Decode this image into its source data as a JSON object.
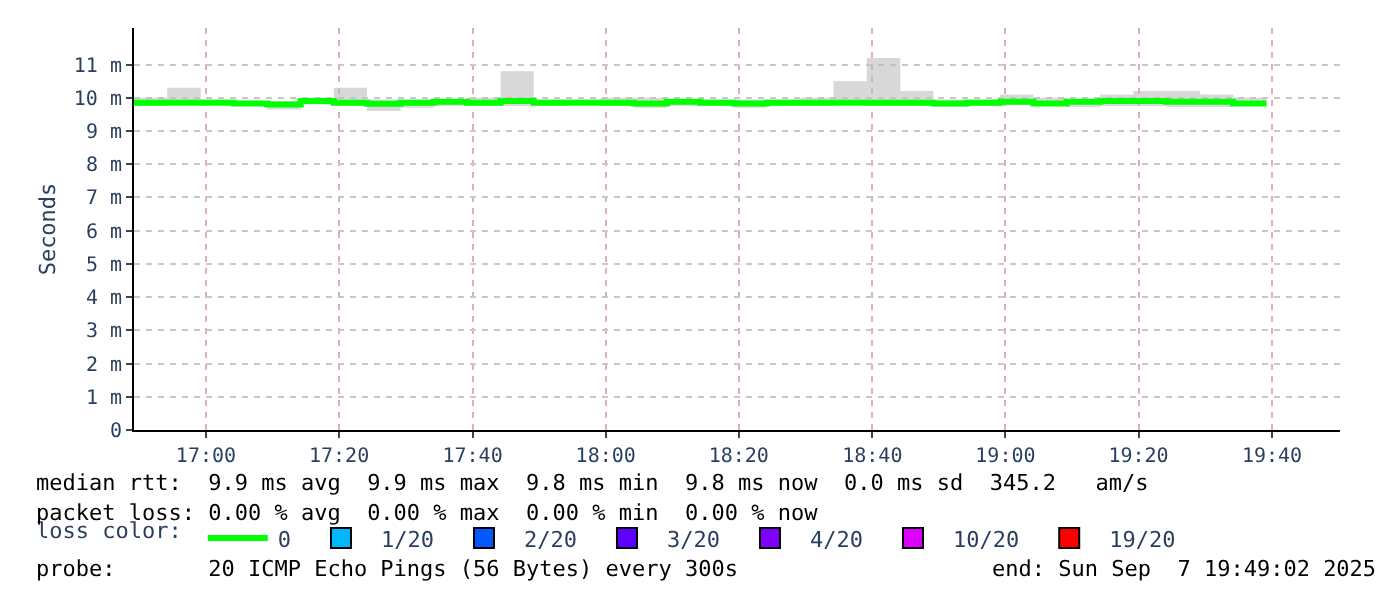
{
  "chart_data": {
    "type": "step",
    "ylabel": "Seconds",
    "legend_title": "loss color:",
    "x": [
      16.82,
      16.903,
      16.987,
      17.07,
      17.153,
      17.237,
      17.32,
      17.403,
      17.487,
      17.57,
      17.653,
      17.737,
      17.82,
      17.903,
      17.987,
      18.07,
      18.153,
      18.237,
      18.32,
      18.403,
      18.487,
      18.57,
      18.653,
      18.737,
      18.82,
      18.903,
      18.987,
      19.07,
      19.153,
      19.237,
      19.32,
      19.403,
      19.487,
      19.57,
      19.653
    ],
    "series": [
      {
        "name": "0",
        "color": "#00ff00",
        "values": [
          9.85,
          9.85,
          9.85,
          9.83,
          9.8,
          9.9,
          9.85,
          9.82,
          9.85,
          9.88,
          9.85,
          9.9,
          9.85,
          9.85,
          9.85,
          9.83,
          9.88,
          9.85,
          9.83,
          9.85,
          9.85,
          9.85,
          9.85,
          9.85,
          9.83,
          9.85,
          9.88,
          9.83,
          9.88,
          9.9,
          9.9,
          9.88,
          9.88,
          9.83,
          9.83
        ],
        "lower": [
          9.75,
          9.8,
          9.78,
          9.78,
          9.65,
          9.8,
          9.75,
          9.6,
          9.7,
          9.75,
          9.75,
          9.75,
          9.75,
          9.78,
          9.75,
          9.7,
          9.75,
          9.75,
          9.7,
          9.75,
          9.75,
          9.78,
          9.75,
          9.75,
          9.72,
          9.75,
          9.78,
          9.75,
          9.72,
          9.75,
          9.75,
          9.72,
          9.72,
          9.75,
          9.75
        ],
        "upper": [
          10.0,
          10.3,
          9.95,
          9.9,
          9.9,
          10.0,
          10.3,
          9.95,
          9.95,
          9.95,
          10.0,
          10.8,
          9.95,
          9.95,
          10.0,
          10.0,
          9.95,
          9.95,
          9.95,
          9.95,
          10.0,
          10.5,
          11.2,
          10.2,
          9.95,
          9.95,
          10.1,
          10.0,
          9.95,
          10.1,
          10.2,
          10.2,
          10.1,
          10.0,
          10.0
        ]
      },
      {
        "name": "1/20",
        "color": "#00b8ff",
        "values": [
          null,
          null,
          null,
          null,
          null,
          null,
          null,
          null,
          null,
          null,
          null,
          null,
          null,
          null,
          null,
          null,
          null,
          null,
          null,
          null,
          null,
          null,
          null,
          null,
          null,
          null,
          null,
          null,
          null,
          null,
          null,
          null,
          null,
          null,
          null
        ]
      },
      {
        "name": "2/20",
        "color": "#0059ff",
        "values": [
          null,
          null,
          null,
          null,
          null,
          null,
          null,
          null,
          null,
          null,
          null,
          null,
          null,
          null,
          null,
          null,
          null,
          null,
          null,
          null,
          null,
          null,
          null,
          null,
          null,
          null,
          null,
          null,
          null,
          null,
          null,
          null,
          null,
          null,
          null
        ]
      },
      {
        "name": "3/20",
        "color": "#5e00ff",
        "values": [
          null,
          null,
          null,
          null,
          null,
          null,
          null,
          null,
          null,
          null,
          null,
          null,
          null,
          null,
          null,
          null,
          null,
          null,
          null,
          null,
          null,
          null,
          null,
          null,
          null,
          null,
          null,
          null,
          null,
          null,
          null,
          null,
          null,
          null,
          null
        ]
      },
      {
        "name": "4/20",
        "color": "#7e00ff",
        "values": [
          null,
          null,
          null,
          null,
          null,
          null,
          null,
          null,
          null,
          null,
          null,
          null,
          null,
          null,
          null,
          null,
          null,
          null,
          null,
          null,
          null,
          null,
          null,
          null,
          null,
          null,
          null,
          null,
          null,
          null,
          null,
          null,
          null,
          null,
          null
        ]
      },
      {
        "name": "10/20",
        "color": "#dd00ff",
        "values": [
          null,
          null,
          null,
          null,
          null,
          null,
          null,
          null,
          null,
          null,
          null,
          null,
          null,
          null,
          null,
          null,
          null,
          null,
          null,
          null,
          null,
          null,
          null,
          null,
          null,
          null,
          null,
          null,
          null,
          null,
          null,
          null,
          null,
          null,
          null
        ]
      },
      {
        "name": "19/20",
        "color": "#ff0000",
        "values": [
          null,
          null,
          null,
          null,
          null,
          null,
          null,
          null,
          null,
          null,
          null,
          null,
          null,
          null,
          null,
          null,
          null,
          null,
          null,
          null,
          null,
          null,
          null,
          null,
          null,
          null,
          null,
          null,
          null,
          null,
          null,
          null,
          null,
          null,
          null
        ]
      }
    ],
    "xlim": [
      16.82,
      19.837
    ],
    "xticks": [
      {
        "value": 17,
        "label": "17:00"
      },
      {
        "value": 17.333,
        "label": "17:20"
      },
      {
        "value": 17.667,
        "label": "17:40"
      },
      {
        "value": 18,
        "label": "18:00"
      },
      {
        "value": 18.333,
        "label": "18:20"
      },
      {
        "value": 18.667,
        "label": "18:40"
      },
      {
        "value": 19,
        "label": "19:00"
      },
      {
        "value": 19.333,
        "label": "19:20"
      },
      {
        "value": 19.667,
        "label": "19:40"
      }
    ],
    "ylim": [
      0,
      12.1
    ],
    "yticks": [
      0,
      {
        "value": 1,
        "label": "1 m"
      },
      {
        "value": 2,
        "label": "2 m"
      },
      {
        "value": 3,
        "label": "3 m"
      },
      {
        "value": 4,
        "label": "4 m"
      },
      {
        "value": 5,
        "label": "5 m"
      },
      {
        "value": 6,
        "label": "6 m"
      },
      {
        "value": 7,
        "label": "7 m"
      },
      {
        "value": 8,
        "label": "8 m"
      },
      {
        "value": 9,
        "label": "9 m"
      },
      {
        "value": 10,
        "label": "10 m"
      },
      {
        "value": 11,
        "label": "11 m"
      }
    ],
    "grid": true,
    "legend": "bottom",
    "marker": "none",
    "line_style": "solid",
    "annotations": [
      "median rtt:  9.9 ms avg  9.9 ms max  9.8 ms min  9.8 ms now  0.0 ms sd  345.2   am/s",
      "packet loss: 0.00 % avg  0.00 % max  0.00 % min  0.00 % now",
      "probe:       20 ICMP Echo Pings (56 Bytes) every 300s",
      "end: Sun Sep  7 19:49:02 2025"
    ]
  }
}
